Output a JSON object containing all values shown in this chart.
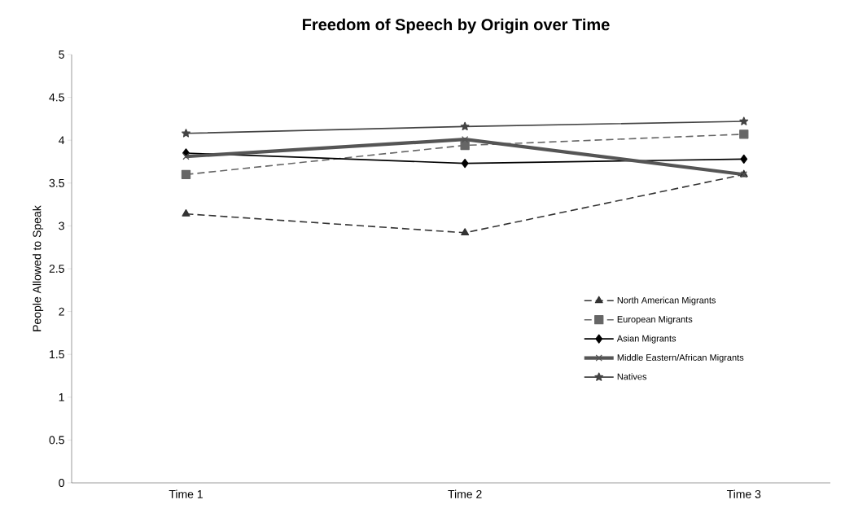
{
  "chart_data": {
    "type": "line",
    "title": "Freedom of Speech by Origin over Time",
    "ylabel": "People Allowed to Speak",
    "categories": [
      "Time 1",
      "Time 2",
      "Time 3"
    ],
    "series": [
      {
        "name": "North American Migrants",
        "color": "#333333",
        "values": [
          3.14,
          2.92,
          3.6
        ],
        "marker": "triangle",
        "line_style": "dashed"
      },
      {
        "name": "European Migrants",
        "color": "#666666",
        "values": [
          3.6,
          3.94,
          4.07
        ],
        "marker": "square",
        "line_style": "dashed"
      },
      {
        "name": "Asian Migrants",
        "color": "#000000",
        "values": [
          3.85,
          3.73,
          3.78
        ],
        "marker": "diamond",
        "line_style": "solid"
      },
      {
        "name": "Middle Eastern/African Migrants",
        "color": "#555555",
        "values": [
          3.81,
          4.01,
          3.6
        ],
        "marker": "cross",
        "line_style": "solid"
      },
      {
        "name": "Natives",
        "color": "#444444",
        "values": [
          4.08,
          4.16,
          4.22
        ],
        "marker": "star",
        "line_style": "solid"
      }
    ],
    "ylim": [
      0,
      5
    ],
    "yticks": [
      0,
      0.5,
      1,
      1.5,
      2,
      2.5,
      3,
      3.5,
      4,
      4.5,
      5
    ],
    "grid": false,
    "legend": "right"
  }
}
